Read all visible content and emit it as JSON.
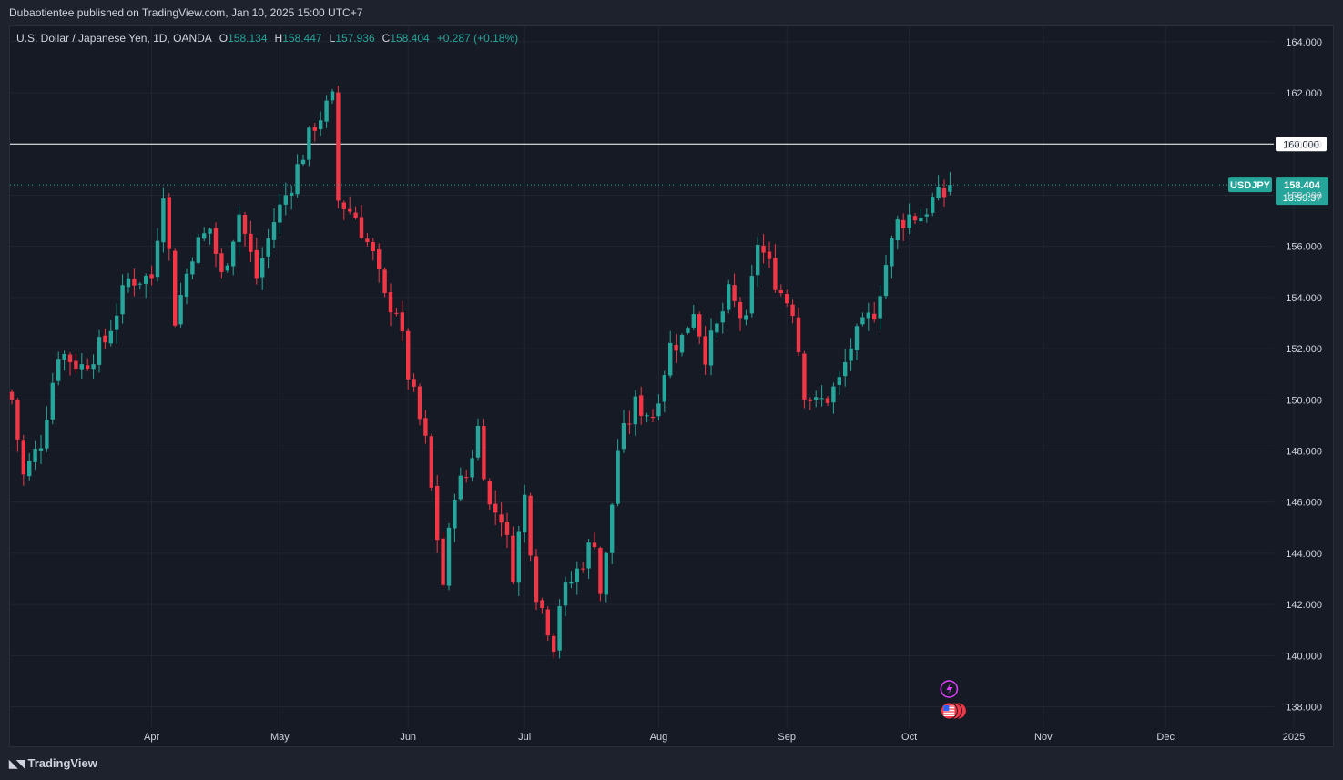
{
  "header": {
    "published": "Dubaotientee published on TradingView.com, Jan 10, 2025 15:00 UTC+7"
  },
  "legend": {
    "symbol": "U.S. Dollar / Japanese Yen, 1D, OANDA",
    "o_label": "O",
    "o": "158.134",
    "h_label": "H",
    "h": "158.447",
    "l_label": "L",
    "l": "157.936",
    "c_label": "C",
    "c": "158.404",
    "change": "+0.287 (+0.18%)"
  },
  "brand": {
    "name": "TradingView"
  },
  "chart_data": {
    "type": "candlestick",
    "symbol": "USDJPY",
    "ylim": [
      137.2,
      164.6
    ],
    "y_ticks": [
      "164.000",
      "162.000",
      "160.000",
      "158.000",
      "156.000",
      "154.000",
      "152.000",
      "150.000",
      "148.000",
      "146.000",
      "144.000",
      "142.000",
      "140.000",
      "138.000"
    ],
    "x_ticks": [
      {
        "label": "Apr",
        "index": 24
      },
      {
        "label": "May",
        "index": 46
      },
      {
        "label": "Jun",
        "index": 68
      },
      {
        "label": "Jul",
        "index": 88
      },
      {
        "label": "Aug",
        "index": 111
      },
      {
        "label": "Sep",
        "index": 133
      },
      {
        "label": "Oct",
        "index": 154
      },
      {
        "label": "Nov",
        "index": 177
      },
      {
        "label": "Dec",
        "index": 198
      },
      {
        "label": "2025",
        "index": 220
      }
    ],
    "horizontal_line": {
      "value": 160.0,
      "label": "160.000"
    },
    "last_price": {
      "symbol": "USDJPY",
      "price": "158.404",
      "countdown": "13:59:37",
      "value": 158.404
    },
    "bull_color": "#26a69a",
    "bear_color": "#f23645",
    "anchors": [
      [
        0,
        150.0
      ],
      [
        2,
        147.0
      ],
      [
        5,
        148.4
      ],
      [
        8,
        151.9
      ],
      [
        12,
        151.3
      ],
      [
        16,
        152.3
      ],
      [
        20,
        154.7
      ],
      [
        24,
        154.8
      ],
      [
        26,
        158.3
      ],
      [
        28,
        153.2
      ],
      [
        31,
        155.8
      ],
      [
        34,
        156.7
      ],
      [
        36,
        154.8
      ],
      [
        39,
        157.3
      ],
      [
        42,
        154.8
      ],
      [
        45,
        157.0
      ],
      [
        48,
        158.5
      ],
      [
        52,
        160.8
      ],
      [
        55,
        161.7
      ],
      [
        56,
        157.8
      ],
      [
        59,
        157.2
      ],
      [
        62,
        155.6
      ],
      [
        64,
        153.9
      ],
      [
        66,
        153.6
      ],
      [
        68,
        151.0
      ],
      [
        71,
        148.3
      ],
      [
        74,
        142.8
      ],
      [
        76,
        146.5
      ],
      [
        78,
        147.0
      ],
      [
        80,
        148.9
      ],
      [
        82,
        145.8
      ],
      [
        84,
        145.5
      ],
      [
        86,
        143.3
      ],
      [
        88,
        146.2
      ],
      [
        90,
        142.5
      ],
      [
        93,
        140.5
      ],
      [
        94,
        142.1
      ],
      [
        97,
        143.3
      ],
      [
        100,
        144.6
      ],
      [
        101,
        142.5
      ],
      [
        102,
        143.8
      ],
      [
        104,
        148.1
      ],
      [
        107,
        149.8
      ],
      [
        110,
        149.4
      ],
      [
        113,
        152.1
      ],
      [
        115,
        152.4
      ],
      [
        117,
        153.6
      ],
      [
        119,
        151.8
      ],
      [
        121,
        152.8
      ],
      [
        123,
        154.1
      ],
      [
        126,
        152.9
      ],
      [
        128,
        156.2
      ],
      [
        130,
        155.2
      ],
      [
        132,
        154.2
      ],
      [
        134,
        153.6
      ],
      [
        136,
        150.4
      ],
      [
        138,
        149.8
      ],
      [
        140,
        150.1
      ],
      [
        142,
        150.7
      ],
      [
        144,
        152.1
      ],
      [
        146,
        152.8
      ],
      [
        148,
        153.5
      ],
      [
        150,
        155.3
      ],
      [
        152,
        156.9
      ],
      [
        154,
        157.2
      ],
      [
        156,
        157.2
      ],
      [
        158,
        157.8
      ],
      [
        160,
        158.0
      ],
      [
        161,
        158.404
      ]
    ]
  }
}
